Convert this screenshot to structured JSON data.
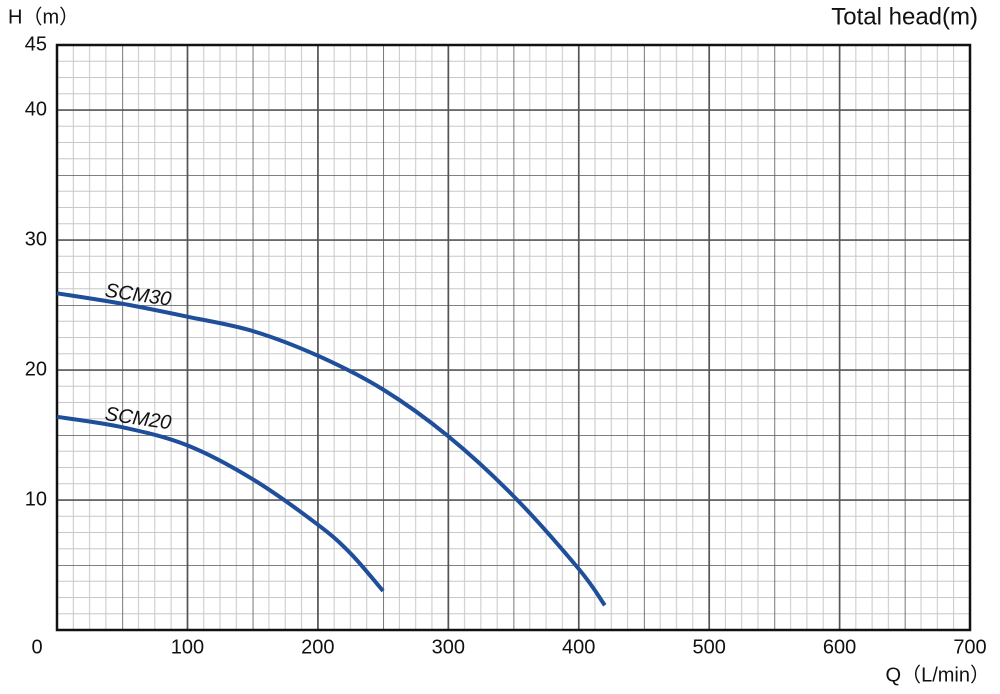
{
  "chart_data": {
    "type": "line",
    "y_label": "H（m）",
    "title": "Total head(m)",
    "x_label": "Q（L/min）",
    "xlim": [
      0,
      700
    ],
    "xticks": [
      0,
      100,
      200,
      300,
      400,
      500,
      600,
      700
    ],
    "ylim": [
      0,
      45
    ],
    "yticks": [
      10,
      20,
      30,
      40,
      45
    ],
    "grid": true,
    "series": [
      {
        "name": "SCM30",
        "color": "#1f4e9a",
        "x": [
          0,
          50,
          100,
          150,
          200,
          250,
          300,
          350,
          400,
          420
        ],
        "values": [
          25.9,
          25.1,
          24.1,
          23.0,
          21.1,
          18.5,
          14.9,
          10.3,
          4.7,
          1.9
        ]
      },
      {
        "name": "SCM20",
        "color": "#1f4e9a",
        "x": [
          0,
          50,
          100,
          150,
          200,
          225,
          250
        ],
        "values": [
          16.4,
          15.6,
          14.2,
          11.6,
          8.1,
          5.9,
          3.0
        ]
      }
    ]
  }
}
